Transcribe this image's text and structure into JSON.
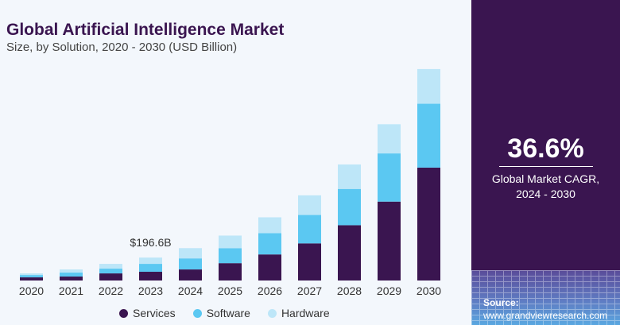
{
  "header": {
    "title": "Global Artificial Intelligence Market",
    "subtitle": "Size, by Solution, 2020 - 2030 (USD Billion)"
  },
  "side_panel": {
    "cagr_value": "36.6%",
    "cagr_label_line1": "Global Market CAGR,",
    "cagr_label_line2": "2024 - 2030",
    "source_label": "Source:",
    "source_url": "www.grandviewresearch.com"
  },
  "colors": {
    "services": "#3a1550",
    "software": "#5bc8f2",
    "hardware": "#bde6f8",
    "panel": "#3a1550"
  },
  "chart_data": {
    "type": "bar",
    "stacked": true,
    "title": "Global Artificial Intelligence Market",
    "subtitle": "Size, by Solution, 2020 - 2030 (USD Billion)",
    "xlabel": "",
    "ylabel": "USD Billion",
    "categories": [
      "2020",
      "2021",
      "2022",
      "2023",
      "2024",
      "2025",
      "2026",
      "2027",
      "2028",
      "2029",
      "2030"
    ],
    "series": [
      {
        "name": "Services",
        "values": [
          27,
          34,
          61,
          75,
          95,
          149,
          224,
          319,
          475,
          678,
          970
        ]
      },
      {
        "name": "Software",
        "values": [
          20,
          34,
          41,
          68,
          95,
          129,
          183,
          244,
          312,
          414,
          549
        ]
      },
      {
        "name": "Hardware",
        "values": [
          14,
          27,
          41,
          54,
          88,
          108,
          136,
          169,
          210,
          251,
          298
        ]
      }
    ],
    "annotations": [
      {
        "category": "2023",
        "text": "$196.6B"
      }
    ],
    "ylim": [
      0,
      1830
    ],
    "grid": false,
    "legend_position": "bottom"
  },
  "legend": [
    {
      "label": "Services",
      "color": "#3a1550"
    },
    {
      "label": "Software",
      "color": "#5bc8f2"
    },
    {
      "label": "Hardware",
      "color": "#bde6f8"
    }
  ]
}
